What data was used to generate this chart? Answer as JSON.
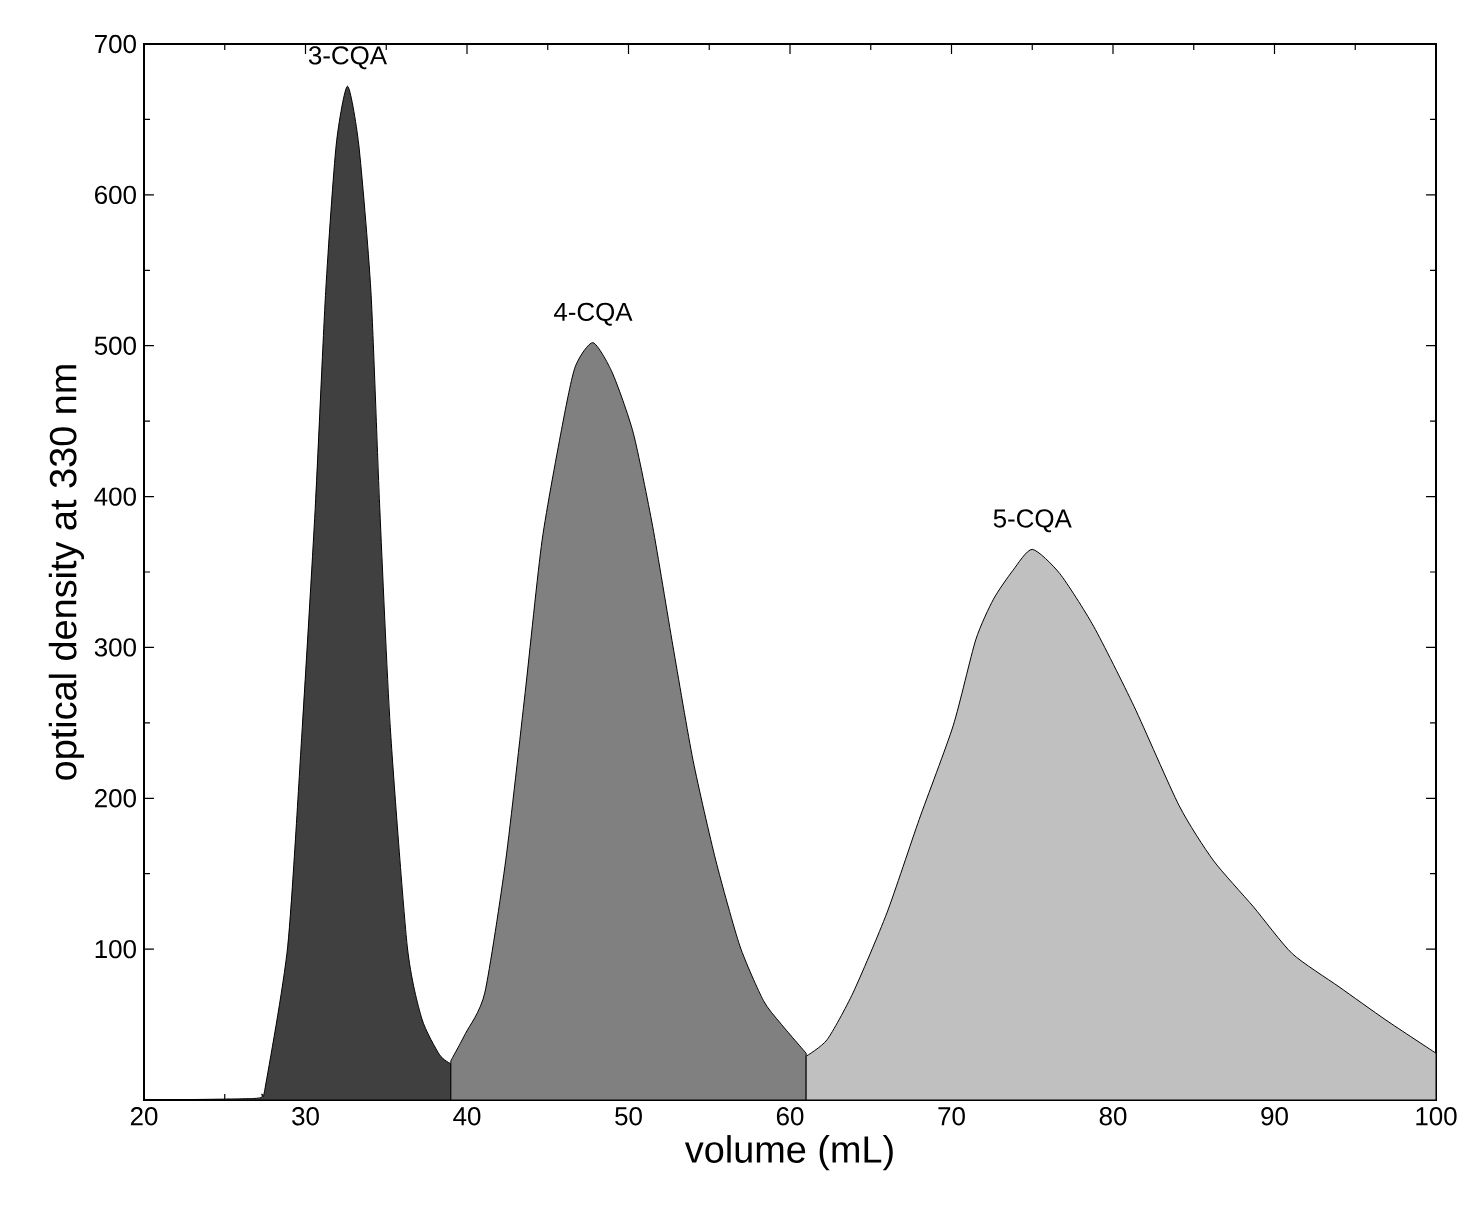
{
  "chart_data": {
    "type": "area",
    "xlabel": "volume (mL)",
    "ylabel": "optical density at 330 nm",
    "xlim": [
      20,
      100
    ],
    "ylim": [
      0,
      700
    ],
    "xticks": [
      20,
      30,
      40,
      50,
      60,
      70,
      80,
      90,
      100
    ],
    "yticks": [
      100,
      200,
      300,
      400,
      500,
      600,
      700
    ],
    "grid": false,
    "legend": false,
    "series": [
      {
        "name": "3-CQA",
        "color": "#404040",
        "x": [
          20,
          26.8,
          27.3,
          27.5,
          28.9,
          29.8,
          30.6,
          31.25,
          31.9,
          32.6,
          33.3,
          34.05,
          34.6,
          35.25,
          36.3,
          37.2,
          38.3,
          39.0
        ],
        "values": [
          0,
          1,
          4,
          8,
          102,
          247,
          392,
          536,
          633,
          672,
          633,
          536,
          392,
          247,
          102,
          54,
          30,
          24
        ]
      },
      {
        "name": "4-CQA",
        "color": "#808080",
        "x": [
          39.0,
          39.9,
          41.1,
          42.4,
          43.6,
          44.65,
          45.9,
          46.7,
          47.8,
          49.0,
          50.3,
          51.5,
          52.75,
          54.0,
          55.4,
          56.9,
          58.35,
          59.4,
          61.0
        ],
        "values": [
          26,
          44,
          71,
          159,
          270,
          371,
          447,
          486,
          502,
          482,
          442,
          380,
          301,
          225,
          159,
          102,
          66,
          51,
          31
        ]
      },
      {
        "name": "5-CQA",
        "color": "#c0c0c0",
        "x": [
          61.0,
          62.3,
          63.9,
          66.0,
          68.0,
          70.1,
          71.5,
          72.6,
          73.8,
          75.0,
          76.7,
          78.8,
          81.3,
          84.1,
          86.2,
          88.7,
          91.1,
          94.0,
          96.9,
          100.0
        ],
        "values": [
          29,
          40,
          71,
          124,
          186,
          248,
          305,
          332,
          351,
          365,
          349,
          314,
          261,
          195,
          159,
          128,
          97,
          75,
          53,
          31
        ]
      }
    ]
  }
}
